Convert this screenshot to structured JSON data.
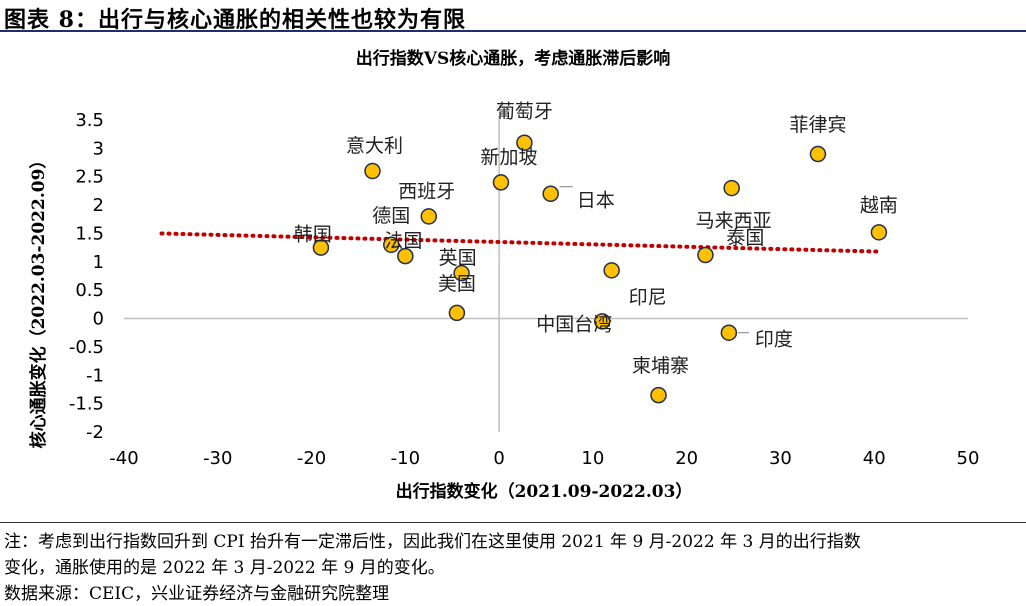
{
  "figure": {
    "title": "图表 8：出行与核心通胀的相关性也较为有限"
  },
  "chart_data": {
    "type": "scatter",
    "title": "出行指数VS核心通胀，考虑通胀滞后影响",
    "xlabel": "出行指数变化（2021.09-2022.03）",
    "ylabel": "核心通胀变化（2022.03-2022.09）",
    "xlim": [
      -40,
      50
    ],
    "ylim": [
      -2,
      3.5
    ],
    "xticks": [
      -40,
      -30,
      -20,
      -10,
      0,
      10,
      20,
      30,
      40,
      50
    ],
    "yticks": [
      3.5,
      3,
      2.5,
      2,
      1.5,
      1,
      0.5,
      0,
      -0.5,
      -1,
      -1.5,
      -2
    ],
    "x_tick_labels": [
      "-40",
      "-30",
      "-20",
      "-10",
      "0",
      "10",
      "20",
      "30",
      "40",
      "50"
    ],
    "y_tick_labels": [
      "3.5",
      "3",
      "2.5",
      "2",
      "1.5",
      "1",
      "0.5",
      "0",
      "-0.5",
      "-1",
      "-1.5",
      "-2"
    ],
    "points": [
      {
        "label": "葡萄牙",
        "x": 2.7,
        "y": 3.1
      },
      {
        "label": "菲律宾",
        "x": 34,
        "y": 2.9
      },
      {
        "label": "意大利",
        "x": -13.5,
        "y": 2.6
      },
      {
        "label": "新加坡",
        "x": 0.2,
        "y": 2.4
      },
      {
        "label": "日本",
        "x": 5.5,
        "y": 2.2
      },
      {
        "label": "马来西亚",
        "x": 24.8,
        "y": 2.3
      },
      {
        "label": "西班牙",
        "x": -7.5,
        "y": 1.8
      },
      {
        "label": "越南",
        "x": 40.5,
        "y": 1.52
      },
      {
        "label": "德国",
        "x": -11.5,
        "y": 1.3
      },
      {
        "label": "韩国",
        "x": -19,
        "y": 1.25
      },
      {
        "label": "法国",
        "x": -10,
        "y": 1.1
      },
      {
        "label": "英国",
        "x": -4,
        "y": 0.8
      },
      {
        "label": "泰国",
        "x": 22,
        "y": 1.12
      },
      {
        "label": "印尼",
        "x": 12,
        "y": 0.85
      },
      {
        "label": "美国",
        "x": -4.5,
        "y": 0.1
      },
      {
        "label": "中国台湾",
        "x": 11,
        "y": -0.05
      },
      {
        "label": "印度",
        "x": 24.5,
        "y": -0.25
      },
      {
        "label": "柬埔寨",
        "x": 17,
        "y": -1.35
      }
    ],
    "trendline": {
      "style": "dotted",
      "x": [
        -36,
        40.5
      ],
      "y": [
        1.5,
        1.18
      ]
    },
    "colors": {
      "marker_fill": "#FFC000",
      "marker_edge": "#1F2F4F",
      "trendline": "#C00000",
      "axis": "#BFBFBF"
    }
  },
  "notes": {
    "line1": "注：考虑到出行指数回升到 CPI 抬升有一定滞后性，因此我们在这里使用 2021 年 9 月-2022 年 3 月的出行指数",
    "line2": "变化，通胀使用的是 2022 年 3 月-2022 年 9 月的变化。",
    "source": "数据来源：CEIC，兴业证券经济与金融研究院整理"
  }
}
